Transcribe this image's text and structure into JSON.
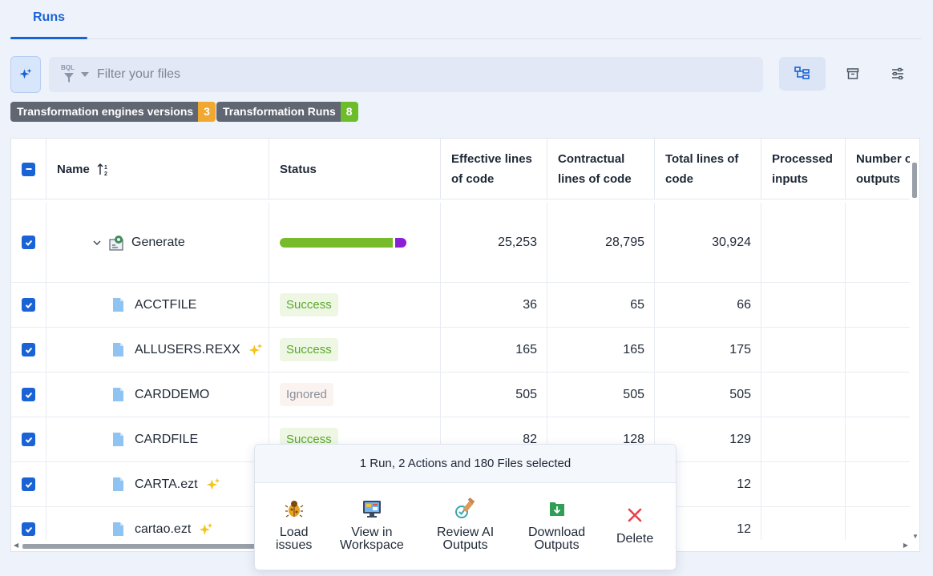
{
  "tabs": [
    {
      "label": "Runs"
    }
  ],
  "search": {
    "prefix": "BQL",
    "placeholder": "Filter your files"
  },
  "badges": {
    "engines": {
      "label": "Transformation engines versions",
      "count": "3"
    },
    "runs": {
      "label": "Transformation Runs",
      "count": "8"
    }
  },
  "table": {
    "columns": [
      "Name",
      "Status",
      "Effective lines of code",
      "Contractual lines of code",
      "Total lines of code",
      "Processed inputs",
      "Number of outputs"
    ],
    "group": {
      "name": "Generate",
      "effective": "25,253",
      "contractual": "28,795",
      "total": "30,924"
    },
    "rows": [
      {
        "name": "ACCTFILE",
        "ai": false,
        "status": "Success",
        "effective": "36",
        "contractual": "65",
        "total": "66"
      },
      {
        "name": "ALLUSERS.REXX",
        "ai": true,
        "status": "Success",
        "effective": "165",
        "contractual": "165",
        "total": "175"
      },
      {
        "name": "CARDDEMO",
        "ai": false,
        "status": "Ignored",
        "effective": "505",
        "contractual": "505",
        "total": "505"
      },
      {
        "name": "CARDFILE",
        "ai": false,
        "status": "Success",
        "effective": "82",
        "contractual": "128",
        "total": "129"
      },
      {
        "name": "CARTA.ezt",
        "ai": true,
        "status": "",
        "effective": "",
        "contractual": "",
        "total": "12"
      },
      {
        "name": "cartao.ezt",
        "ai": true,
        "status": "",
        "effective": "",
        "contractual": "",
        "total": "12"
      }
    ]
  },
  "action_panel": {
    "title": "1 Run, 2 Actions and 180 Files selected",
    "actions": [
      {
        "label": "Load\nissues",
        "icon": "bug-icon"
      },
      {
        "label": "View in\nWorkspace",
        "icon": "workspace-icon"
      },
      {
        "label": "Review AI\nOutputs",
        "icon": "review-ai-icon"
      },
      {
        "label": "Download\nOutputs",
        "icon": "download-icon"
      },
      {
        "label": "Delete",
        "icon": "delete-icon"
      }
    ]
  },
  "colors": {
    "accent": "#1a63d6",
    "success": "#5aa72a",
    "progress_green": "#78bb2a",
    "progress_purple": "#8a1fd6",
    "badge_orange": "#f0a830",
    "badge_green": "#6dbd2a"
  }
}
